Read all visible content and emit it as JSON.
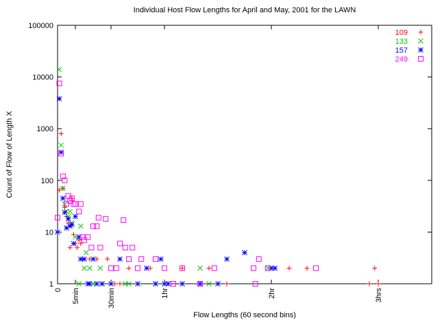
{
  "chart_data": {
    "type": "scatter",
    "title": "Individual Host Flow Lengths for April and May, 2001 for the LAWN",
    "xlabel": "Flow Lengths (60 second bins)",
    "ylabel": "Count of Flow of Length X",
    "xlim": [
      0,
      210
    ],
    "ylim": [
      1,
      100000
    ],
    "log_y": true,
    "legend": "top-right",
    "xticks": [
      0,
      {
        "value": 10,
        "label": "5min"
      },
      {
        "value": 30,
        "label": "30min"
      },
      {
        "value": 60,
        "label": "1hr"
      },
      {
        "value": 120,
        "label": "2hr"
      },
      {
        "value": 180,
        "label": "3hrs"
      }
    ],
    "yticks": [
      1,
      10,
      100,
      1000,
      10000,
      100000
    ],
    "series": [
      {
        "name": "109",
        "color": "#ff0000",
        "marker": "plus",
        "x": [
          1,
          2,
          3,
          4,
          5,
          6,
          7,
          8,
          9,
          10,
          11,
          12,
          13,
          14,
          18,
          22,
          28,
          30,
          32,
          35,
          40,
          45,
          52,
          62,
          70,
          85,
          95,
          130,
          140,
          175,
          178,
          180
        ],
        "values": [
          65,
          800,
          70,
          30,
          20,
          15,
          5,
          45,
          9,
          6,
          5,
          7,
          6,
          3,
          3,
          3,
          3,
          1,
          1,
          1,
          2,
          1,
          2,
          1,
          2,
          2,
          1,
          2,
          2,
          1,
          2,
          1
        ]
      },
      {
        "name": "133",
        "color": "#00cc00",
        "marker": "cross",
        "x": [
          1,
          2,
          3,
          4,
          5,
          6,
          7,
          8,
          10,
          12,
          13,
          15,
          16,
          18,
          20,
          24,
          25,
          38,
          40,
          55,
          80,
          85,
          118,
          120
        ],
        "values": [
          14000,
          480,
          70,
          35,
          25,
          20,
          25,
          15,
          8,
          1,
          13,
          2,
          4,
          2,
          1,
          2,
          1,
          1,
          1,
          1,
          2,
          1,
          2,
          2
        ]
      },
      {
        "name": "157",
        "color": "#0000ff",
        "marker": "star",
        "x": [
          0,
          1,
          2,
          3,
          4,
          5,
          6,
          7,
          8,
          9,
          10,
          12,
          13,
          15,
          17,
          18,
          20,
          22,
          25,
          30,
          35,
          45,
          50,
          55,
          58,
          60,
          62,
          70,
          80,
          90,
          95,
          105,
          120,
          122
        ],
        "values": [
          10,
          3800,
          350,
          45,
          24,
          12,
          18,
          13,
          14,
          6,
          20,
          8,
          3,
          3,
          1,
          1,
          3,
          1,
          1,
          1,
          3,
          1,
          2,
          1,
          3,
          1,
          1,
          1,
          1,
          1,
          3,
          4,
          2,
          2
        ]
      },
      {
        "name": "249",
        "color": "#ff00ff",
        "marker": "box",
        "x": [
          0,
          1,
          2,
          3,
          4,
          5,
          6,
          7,
          8,
          9,
          10,
          12,
          13,
          14,
          15,
          17,
          19,
          20,
          22,
          23,
          24,
          27,
          30,
          33,
          35,
          37,
          38,
          40,
          42,
          45,
          47,
          55,
          60,
          65,
          70,
          80,
          88,
          110,
          111,
          113,
          118,
          145
        ],
        "values": [
          19,
          7500,
          330,
          120,
          100,
          35,
          50,
          40,
          45,
          35,
          35,
          25,
          35,
          8,
          7,
          8,
          5,
          13,
          13,
          19,
          5,
          18,
          2,
          2,
          6,
          17,
          5,
          3,
          5,
          2,
          3,
          3,
          2,
          1,
          2,
          1,
          2,
          2,
          1,
          3,
          2,
          2
        ]
      }
    ]
  }
}
